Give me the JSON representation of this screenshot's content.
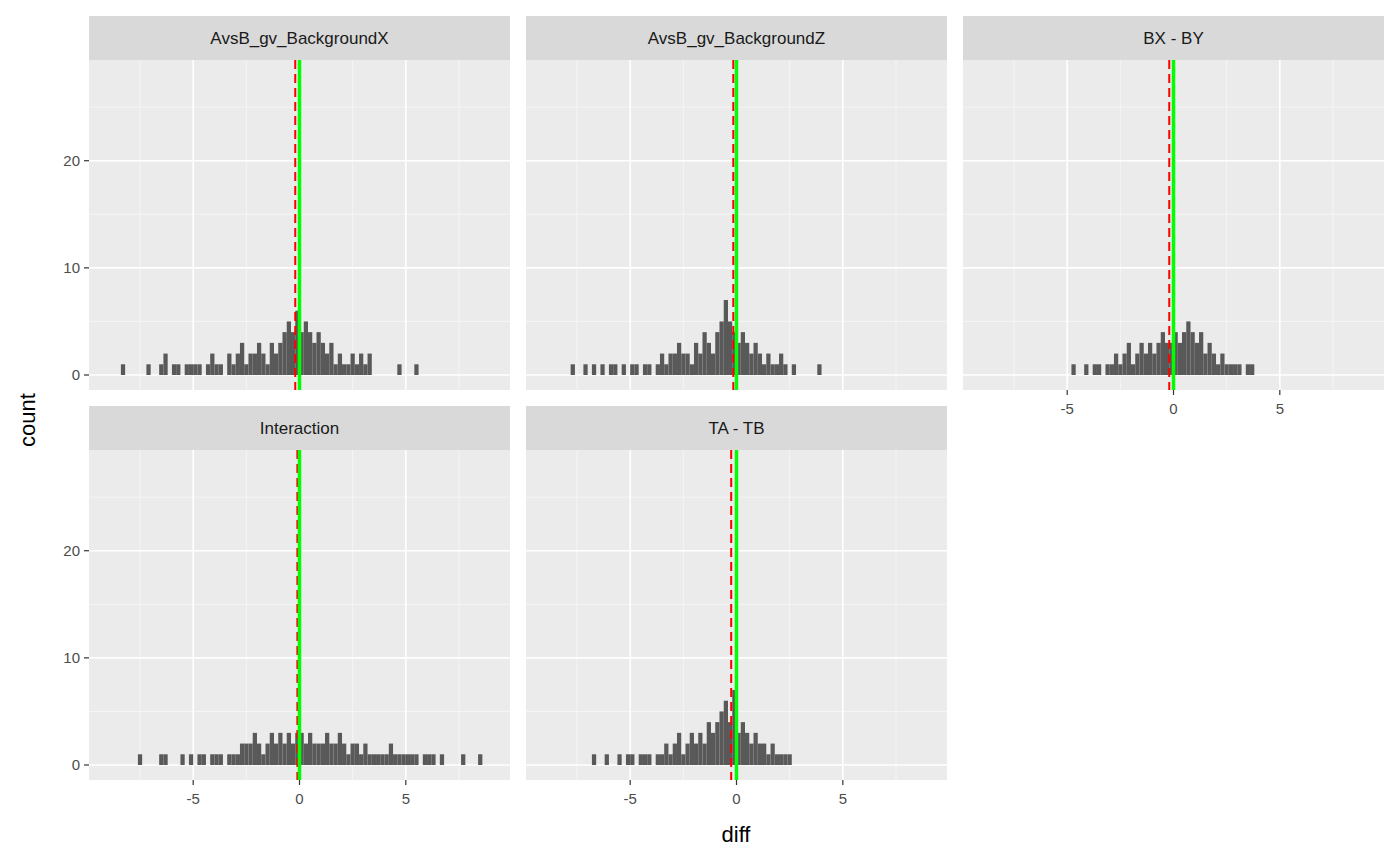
{
  "axis_labels": {
    "x": "diff",
    "y": "count"
  },
  "chart_data": [
    {
      "type": "histogram",
      "title": "AvsB_gv_BackgroundX",
      "color": "#595959",
      "grid": true,
      "tick_labels": "y",
      "xlim": [
        -9.9,
        9.9
      ],
      "ylim": [
        -1.4,
        29.4
      ],
      "xticks": [
        -5,
        0,
        5
      ],
      "yticks": [
        0,
        10,
        20
      ],
      "bins": [
        -8.4,
        -8.2,
        -8,
        -7.8,
        -7.6,
        -7.4,
        -7.2,
        -7,
        -6.8,
        -6.6,
        -6.4,
        -6.2,
        -6,
        -5.8,
        -5.6,
        -5.4,
        -5.2,
        -5,
        -4.8,
        -4.6,
        -4.4,
        -4.2,
        -4,
        -3.8,
        -3.6,
        -3.4,
        -3.2,
        -3,
        -2.8,
        -2.6,
        -2.4,
        -2.2,
        -2,
        -1.8,
        -1.6,
        -1.4,
        -1.2,
        -1,
        -0.8,
        -0.6,
        -0.4,
        -0.2,
        0,
        0.2,
        0.4,
        0.6,
        0.8,
        1,
        1.2,
        1.4,
        1.6,
        1.8,
        2,
        2.2,
        2.4,
        2.6,
        2.8,
        3,
        3.2,
        3.4,
        3.6,
        3.8,
        4,
        4.2,
        4.4,
        4.6,
        4.8,
        5,
        5.2,
        5.4,
        5.6
      ],
      "values": [
        1,
        0,
        0,
        0,
        0,
        0,
        1,
        0,
        0,
        1,
        2,
        0,
        1,
        1,
        0,
        1,
        1,
        1,
        1,
        0,
        1,
        2,
        1,
        1,
        0,
        2,
        1,
        2,
        3,
        1,
        2,
        2,
        3,
        2,
        1,
        3,
        2,
        3,
        4,
        5,
        4,
        6,
        4,
        5,
        4,
        3,
        4,
        3,
        2,
        3,
        1,
        2,
        1,
        1,
        2,
        1,
        2,
        1,
        2,
        0,
        0,
        0,
        0,
        0,
        0,
        1,
        0,
        0,
        0,
        1
      ],
      "reference_lines": [
        {
          "value": -0.2,
          "color": "#ff0000",
          "line_style": "dashed"
        },
        {
          "value": 0,
          "color": "#00ff00",
          "line_style": "solid"
        }
      ]
    },
    {
      "type": "histogram",
      "title": "AvsB_gv_BackgroundZ",
      "color": "#595959",
      "grid": true,
      "tick_labels": false,
      "xlim": [
        -9.9,
        9.9
      ],
      "ylim": [
        -1.4,
        29.4
      ],
      "xticks": [
        -5,
        0,
        5
      ],
      "yticks": [
        0,
        10,
        20
      ],
      "bins": [
        -7.8,
        -7.6,
        -7.4,
        -7.2,
        -7,
        -6.8,
        -6.6,
        -6.4,
        -6.2,
        -6,
        -5.8,
        -5.6,
        -5.4,
        -5.2,
        -5,
        -4.8,
        -4.6,
        -4.4,
        -4.2,
        -4,
        -3.8,
        -3.6,
        -3.4,
        -3.2,
        -3,
        -2.8,
        -2.6,
        -2.4,
        -2.2,
        -2,
        -1.8,
        -1.6,
        -1.4,
        -1.2,
        -1,
        -0.8,
        -0.6,
        -0.4,
        -0.2,
        0,
        0.2,
        0.4,
        0.6,
        0.8,
        1,
        1.2,
        1.4,
        1.6,
        1.8,
        2,
        2.2,
        2.4,
        2.6,
        2.8,
        3,
        3.2,
        3.4,
        3.6,
        3.8,
        4
      ],
      "values": [
        1,
        0,
        0,
        1,
        0,
        1,
        0,
        1,
        0,
        1,
        1,
        0,
        1,
        0,
        1,
        1,
        0,
        1,
        1,
        0,
        1,
        2,
        1,
        2,
        2,
        3,
        2,
        2,
        1,
        3,
        2,
        4,
        3,
        2,
        4,
        5,
        7,
        5,
        4,
        3,
        4,
        3,
        2,
        3,
        2,
        1,
        2,
        1,
        1,
        2,
        1,
        0,
        1,
        0,
        0,
        0,
        0,
        0,
        1
      ],
      "reference_lines": [
        {
          "value": -0.15,
          "color": "#ff0000",
          "line_style": "dashed"
        },
        {
          "value": 0,
          "color": "#00ff00",
          "line_style": "solid"
        }
      ]
    },
    {
      "type": "histogram",
      "title": "BX - BY",
      "color": "#595959",
      "grid": true,
      "tick_labels": "x",
      "xlim": [
        -9.9,
        9.9
      ],
      "ylim": [
        -1.4,
        29.4
      ],
      "xticks": [
        -5,
        0,
        5
      ],
      "yticks": [
        0,
        10,
        20
      ],
      "bins": [
        -4.8,
        -4.6,
        -4.4,
        -4.2,
        -4,
        -3.8,
        -3.6,
        -3.4,
        -3.2,
        -3,
        -2.8,
        -2.6,
        -2.4,
        -2.2,
        -2,
        -1.8,
        -1.6,
        -1.4,
        -1.2,
        -1,
        -0.8,
        -0.6,
        -0.4,
        -0.2,
        0,
        0.2,
        0.4,
        0.6,
        0.8,
        1,
        1.2,
        1.4,
        1.6,
        1.8,
        2,
        2.2,
        2.4,
        2.6,
        2.8,
        3,
        3.2,
        3.4,
        3.6,
        3.8
      ],
      "values": [
        1,
        0,
        0,
        1,
        0,
        1,
        1,
        0,
        1,
        1,
        2,
        1,
        2,
        3,
        1,
        2,
        3,
        2,
        3,
        2,
        3,
        4,
        3,
        3,
        4,
        3,
        4,
        5,
        4,
        3,
        4,
        2,
        3,
        2,
        1,
        2,
        1,
        1,
        1,
        1,
        0,
        1,
        1
      ],
      "reference_lines": [
        {
          "value": -0.2,
          "color": "#ff0000",
          "line_style": "dashed"
        },
        {
          "value": 0,
          "color": "#00ff00",
          "line_style": "solid"
        }
      ]
    },
    {
      "type": "histogram",
      "title": "Interaction",
      "color": "#595959",
      "grid": true,
      "tick_labels": true,
      "xlim": [
        -9.9,
        9.9
      ],
      "ylim": [
        -1.4,
        29.4
      ],
      "xticks": [
        -5,
        0,
        5
      ],
      "yticks": [
        0,
        10,
        20
      ],
      "bins": [
        -7.6,
        -7.4,
        -7.2,
        -7,
        -6.8,
        -6.6,
        -6.4,
        -6.2,
        -6,
        -5.8,
        -5.6,
        -5.4,
        -5.2,
        -5,
        -4.8,
        -4.6,
        -4.4,
        -4.2,
        -4,
        -3.8,
        -3.6,
        -3.4,
        -3.2,
        -3,
        -2.8,
        -2.6,
        -2.4,
        -2.2,
        -2,
        -1.8,
        -1.6,
        -1.4,
        -1.2,
        -1,
        -0.8,
        -0.6,
        -0.4,
        -0.2,
        0,
        0.2,
        0.4,
        0.6,
        0.8,
        1,
        1.2,
        1.4,
        1.6,
        1.8,
        2,
        2.2,
        2.4,
        2.6,
        2.8,
        3,
        3.2,
        3.4,
        3.6,
        3.8,
        4,
        4.2,
        4.4,
        4.6,
        4.8,
        5,
        5.2,
        5.4,
        5.6,
        5.8,
        6,
        6.2,
        6.4,
        6.6,
        6.8,
        7,
        7.2,
        7.4,
        7.6,
        7.8,
        8,
        8.2,
        8.4,
        8.6
      ],
      "values": [
        1,
        0,
        0,
        0,
        0,
        1,
        1,
        0,
        0,
        0,
        1,
        0,
        1,
        0,
        1,
        1,
        0,
        1,
        1,
        1,
        0,
        1,
        1,
        1,
        2,
        2,
        2,
        3,
        2,
        1,
        2,
        3,
        2,
        3,
        2,
        3,
        2,
        3,
        3,
        2,
        3,
        2,
        2,
        2,
        3,
        2,
        2,
        3,
        2,
        1,
        2,
        2,
        1,
        2,
        1,
        1,
        1,
        1,
        1,
        2,
        1,
        1,
        1,
        1,
        1,
        1,
        0,
        1,
        1,
        1,
        0,
        1,
        0,
        0,
        0,
        0,
        1,
        0,
        0,
        0,
        1
      ],
      "reference_lines": [
        {
          "value": -0.1,
          "color": "#ff0000",
          "line_style": "dashed"
        },
        {
          "value": 0,
          "color": "#00ff00",
          "line_style": "solid"
        }
      ]
    },
    {
      "type": "histogram",
      "title": "TA - TB",
      "color": "#595959",
      "grid": true,
      "tick_labels": "x",
      "xlim": [
        -9.9,
        9.9
      ],
      "ylim": [
        -1.4,
        29.4
      ],
      "xticks": [
        -5,
        0,
        5
      ],
      "yticks": [
        0,
        10,
        20
      ],
      "bins": [
        -6.8,
        -6.6,
        -6.4,
        -6.2,
        -6,
        -5.8,
        -5.6,
        -5.4,
        -5.2,
        -5,
        -4.8,
        -4.6,
        -4.4,
        -4.2,
        -4,
        -3.8,
        -3.6,
        -3.4,
        -3.2,
        -3,
        -2.8,
        -2.6,
        -2.4,
        -2.2,
        -2,
        -1.8,
        -1.6,
        -1.4,
        -1.2,
        -1,
        -0.8,
        -0.6,
        -0.4,
        -0.2,
        0,
        0.2,
        0.4,
        0.6,
        0.8,
        1,
        1.2,
        1.4,
        1.6,
        1.8,
        2,
        2.2,
        2.4,
        2.6
      ],
      "values": [
        1,
        0,
        0,
        1,
        0,
        0,
        1,
        0,
        1,
        1,
        0,
        1,
        1,
        1,
        0,
        1,
        1,
        2,
        1,
        2,
        3,
        1,
        2,
        3,
        2,
        3,
        2,
        4,
        3,
        4,
        5,
        6,
        4,
        7,
        3,
        4,
        3,
        2,
        3,
        2,
        2,
        1,
        2,
        1,
        1,
        1,
        1
      ],
      "reference_lines": [
        {
          "value": -0.25,
          "color": "#ff0000",
          "line_style": "dashed"
        },
        {
          "value": 0,
          "color": "#00ff00",
          "line_style": "solid"
        }
      ]
    }
  ]
}
